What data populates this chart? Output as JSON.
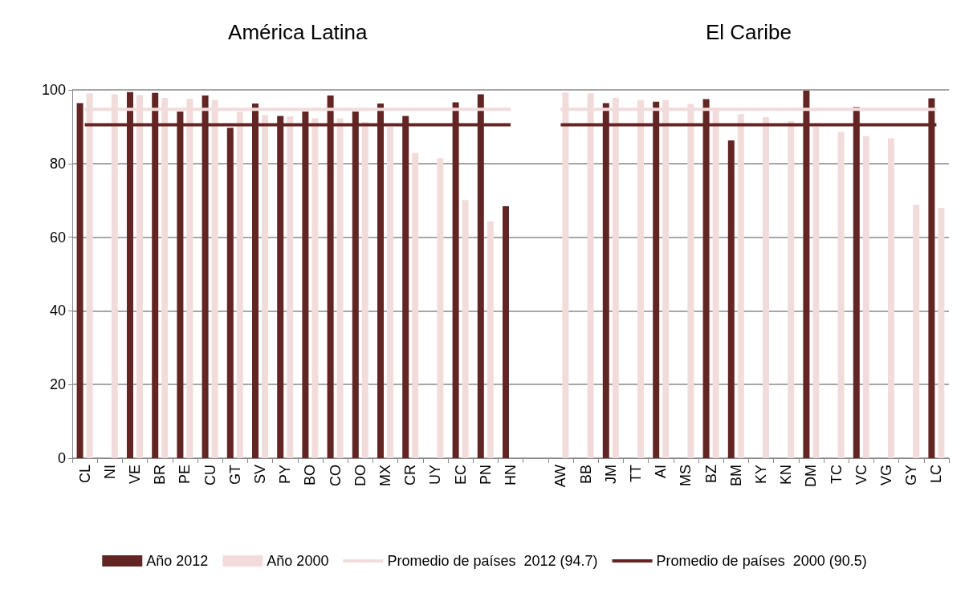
{
  "chart_data": {
    "type": "bar",
    "annotations": [
      "América Latina",
      "El Caribe"
    ],
    "categories": [
      "CL",
      "NI",
      "VE",
      "BR",
      "PE",
      "CU",
      "GT",
      "SV",
      "PY",
      "BO",
      "CO",
      "DO",
      "MX",
      "CR",
      "UY",
      "EC",
      "PN",
      "HN",
      null,
      "AW",
      "BB",
      "JM",
      "TT",
      "AI",
      "MS",
      "BZ",
      "BM",
      "KY",
      "KN",
      "DM",
      "TC",
      "VC",
      "VG",
      "GY",
      "LC"
    ],
    "series": [
      {
        "name": "Año 2012",
        "color": "#632523",
        "values": [
          96.4,
          null,
          99.4,
          99.2,
          94.1,
          98.5,
          89.7,
          96.3,
          92.9,
          94.1,
          98.5,
          94.1,
          96.3,
          92.9,
          null,
          96.6,
          98.8,
          68.4,
          null,
          null,
          null,
          96.4,
          null,
          96.8,
          null,
          97.5,
          86.3,
          null,
          null,
          99.8,
          null,
          95.3,
          null,
          null,
          97.7
        ]
      },
      {
        "name": "Año 2000",
        "color": "#f2dcdb",
        "values": [
          99.1,
          98.8,
          98.6,
          97.8,
          97.6,
          97.3,
          94,
          93.2,
          92.8,
          92.3,
          92.3,
          91.3,
          90,
          82.9,
          81.4,
          70.1,
          64.3,
          null,
          null,
          99.3,
          99.1,
          97.9,
          97.3,
          97.3,
          96.2,
          95,
          93.4,
          92.6,
          91.5,
          90,
          88.6,
          87.5,
          86.9,
          68.8,
          68
        ]
      },
      {
        "name": "Promedio de países  2012 (94.7)",
        "type": "line",
        "color": "#f2dcdb",
        "values": [
          94.7,
          94.7,
          94.7,
          94.7,
          94.7,
          94.7,
          94.7,
          94.7,
          94.7,
          94.7,
          94.7,
          94.7,
          94.7,
          94.7,
          94.7,
          94.7,
          94.7,
          94.7,
          null,
          94.7,
          94.7,
          94.7,
          94.7,
          94.7,
          94.7,
          94.7,
          94.7,
          94.7,
          94.7,
          94.7,
          94.7,
          94.7,
          94.7,
          94.7,
          94.7
        ]
      },
      {
        "name": "Promedio de países  2000 (90.5)",
        "type": "line",
        "color": "#632523",
        "values": [
          90.5,
          90.5,
          90.5,
          90.5,
          90.5,
          90.5,
          90.5,
          90.5,
          90.5,
          90.5,
          90.5,
          90.5,
          90.5,
          90.5,
          90.5,
          90.5,
          90.5,
          90.5,
          null,
          90.5,
          90.5,
          90.5,
          90.5,
          90.5,
          90.5,
          90.5,
          90.5,
          90.5,
          90.5,
          90.5,
          90.5,
          90.5,
          90.5,
          90.5,
          90.5
        ]
      }
    ],
    "ylim": [
      0,
      100
    ],
    "yticks": [
      0,
      20,
      40,
      60,
      80,
      100
    ],
    "grid": "y",
    "legend": "bottom",
    "marker": "none",
    "line_style": "solid"
  }
}
